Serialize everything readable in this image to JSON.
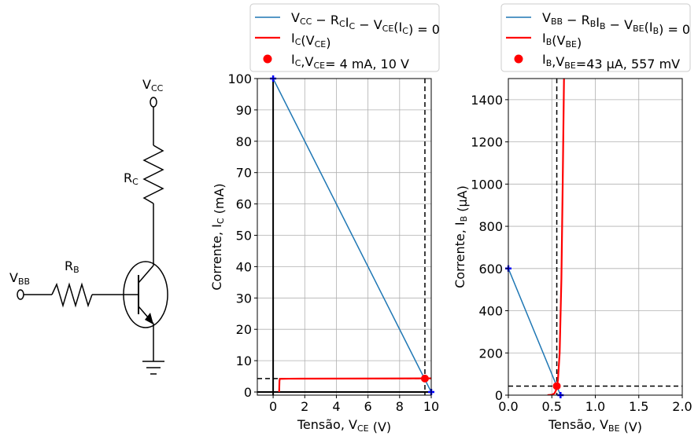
{
  "circuit": {
    "vcc_label": "V",
    "vcc_sub": "CC",
    "rc_label": "R",
    "rc_sub": "C",
    "rb_label": "R",
    "rb_sub": "B",
    "vbb_label": "V",
    "vbb_sub": "BB"
  },
  "chart_data": [
    {
      "type": "line",
      "xlabel": {
        "text": "Tensão, V",
        "sub": "CE",
        "unit": " (V)"
      },
      "ylabel": {
        "text": "Corrente, I",
        "sub": "C",
        "unit": " (mA)"
      },
      "xlim": [
        -1,
        10
      ],
      "ylim": [
        -1,
        100
      ],
      "xticks": [
        0,
        2,
        4,
        6,
        8,
        10
      ],
      "yticks": [
        0,
        10,
        20,
        30,
        40,
        50,
        60,
        70,
        80,
        90,
        100
      ],
      "grid": true,
      "legend": {
        "placement": "above",
        "entries": [
          {
            "kind": "line",
            "color": "#1f77b4",
            "text": "Vₑ"
          },
          {
            "kind": "line",
            "color": "#ff0000",
            "text": ""
          },
          {
            "kind": "marker",
            "color": "#ff0000",
            "text": ""
          }
        ]
      },
      "legend_text": [
        [
          [
            "V",
            ""
          ],
          [
            "CC",
            "sub"
          ],
          [
            " − R",
            ""
          ],
          [
            "C",
            "sub"
          ],
          [
            "I",
            ""
          ],
          [
            "C",
            "sub"
          ],
          [
            " − V",
            ""
          ],
          [
            "CE",
            "sub"
          ],
          [
            "(I",
            ""
          ],
          [
            "C",
            "sub"
          ],
          [
            ") = 0",
            ""
          ]
        ],
        [
          [
            "I",
            ""
          ],
          [
            "C",
            "sub"
          ],
          [
            "(V",
            ""
          ],
          [
            "CE",
            "sub"
          ],
          [
            ")",
            ""
          ]
        ],
        [
          [
            "I",
            ""
          ],
          [
            "C",
            "sub"
          ],
          [
            ",V",
            ""
          ],
          [
            "CE",
            "sub"
          ],
          [
            "= 4 mA, 10 V",
            ""
          ]
        ]
      ],
      "series": [
        {
          "kind": "load_line",
          "color": "#1f77b4",
          "x": [
            0,
            10
          ],
          "y": [
            100,
            0
          ]
        },
        {
          "kind": "curve",
          "color": "#ff0000",
          "x": [
            0.38,
            0.4,
            0.42,
            1,
            10
          ],
          "y": [
            0,
            3.5,
            4.2,
            4.25,
            4.35
          ]
        }
      ],
      "endpoint_markers": {
        "color": "#0000ff",
        "points": [
          [
            0,
            100
          ],
          [
            10,
            0
          ]
        ]
      },
      "operating_point": {
        "x": 9.6,
        "y": 4.3,
        "color": "#ff0000"
      },
      "dashed_v": 9.6,
      "dashed_h": 4.3,
      "axis_lines": {
        "x0": 0,
        "y0": 0
      }
    },
    {
      "type": "line",
      "xlabel": {
        "text": "Tensão, V",
        "sub": "BE",
        "unit": " (V)"
      },
      "ylabel": {
        "text": "Corrente, I",
        "sub": "B",
        "unit": " (μA)"
      },
      "xlim": [
        0,
        2
      ],
      "ylim": [
        0,
        1500
      ],
      "xticks": [
        "0.0",
        "0.5",
        "1.0",
        "1.5",
        "2.0"
      ],
      "yticks": [
        0,
        200,
        400,
        600,
        800,
        1000,
        1200,
        1400
      ],
      "grid": true,
      "legend_text": [
        [
          [
            "V",
            ""
          ],
          [
            "BB",
            "sub"
          ],
          [
            " − R",
            ""
          ],
          [
            "B",
            "sub"
          ],
          [
            "I",
            ""
          ],
          [
            "B",
            "sub"
          ],
          [
            " − V",
            ""
          ],
          [
            "BE",
            "sub"
          ],
          [
            "(I",
            ""
          ],
          [
            "B",
            "sub"
          ],
          [
            ") = 0",
            ""
          ]
        ],
        [
          [
            "I",
            ""
          ],
          [
            "B",
            "sub"
          ],
          [
            "(V",
            ""
          ],
          [
            "BE",
            "sub"
          ],
          [
            ")",
            ""
          ]
        ],
        [
          [
            "I",
            ""
          ],
          [
            "B",
            "sub"
          ],
          [
            ",V",
            ""
          ],
          [
            "BE",
            "sub"
          ],
          [
            "=43 μA, 557 mV",
            ""
          ]
        ]
      ],
      "series": [
        {
          "kind": "load_line",
          "color": "#1f77b4",
          "x": [
            0,
            0.6
          ],
          "y": [
            600,
            0
          ]
        },
        {
          "kind": "curve",
          "color": "#ff0000",
          "x": [
            0.45,
            0.5,
            0.53,
            0.55,
            0.57,
            0.59,
            0.61,
            0.625,
            0.64
          ],
          "y": [
            0,
            2,
            8,
            25,
            70,
            200,
            550,
            1000,
            1500
          ]
        }
      ],
      "endpoint_markers": {
        "color": "#0000ff",
        "points": [
          [
            0,
            600
          ],
          [
            0.6,
            0
          ]
        ]
      },
      "operating_point": {
        "x": 0.557,
        "y": 43,
        "color": "#ff0000"
      },
      "dashed_v": 0.557,
      "dashed_h": 43
    }
  ]
}
